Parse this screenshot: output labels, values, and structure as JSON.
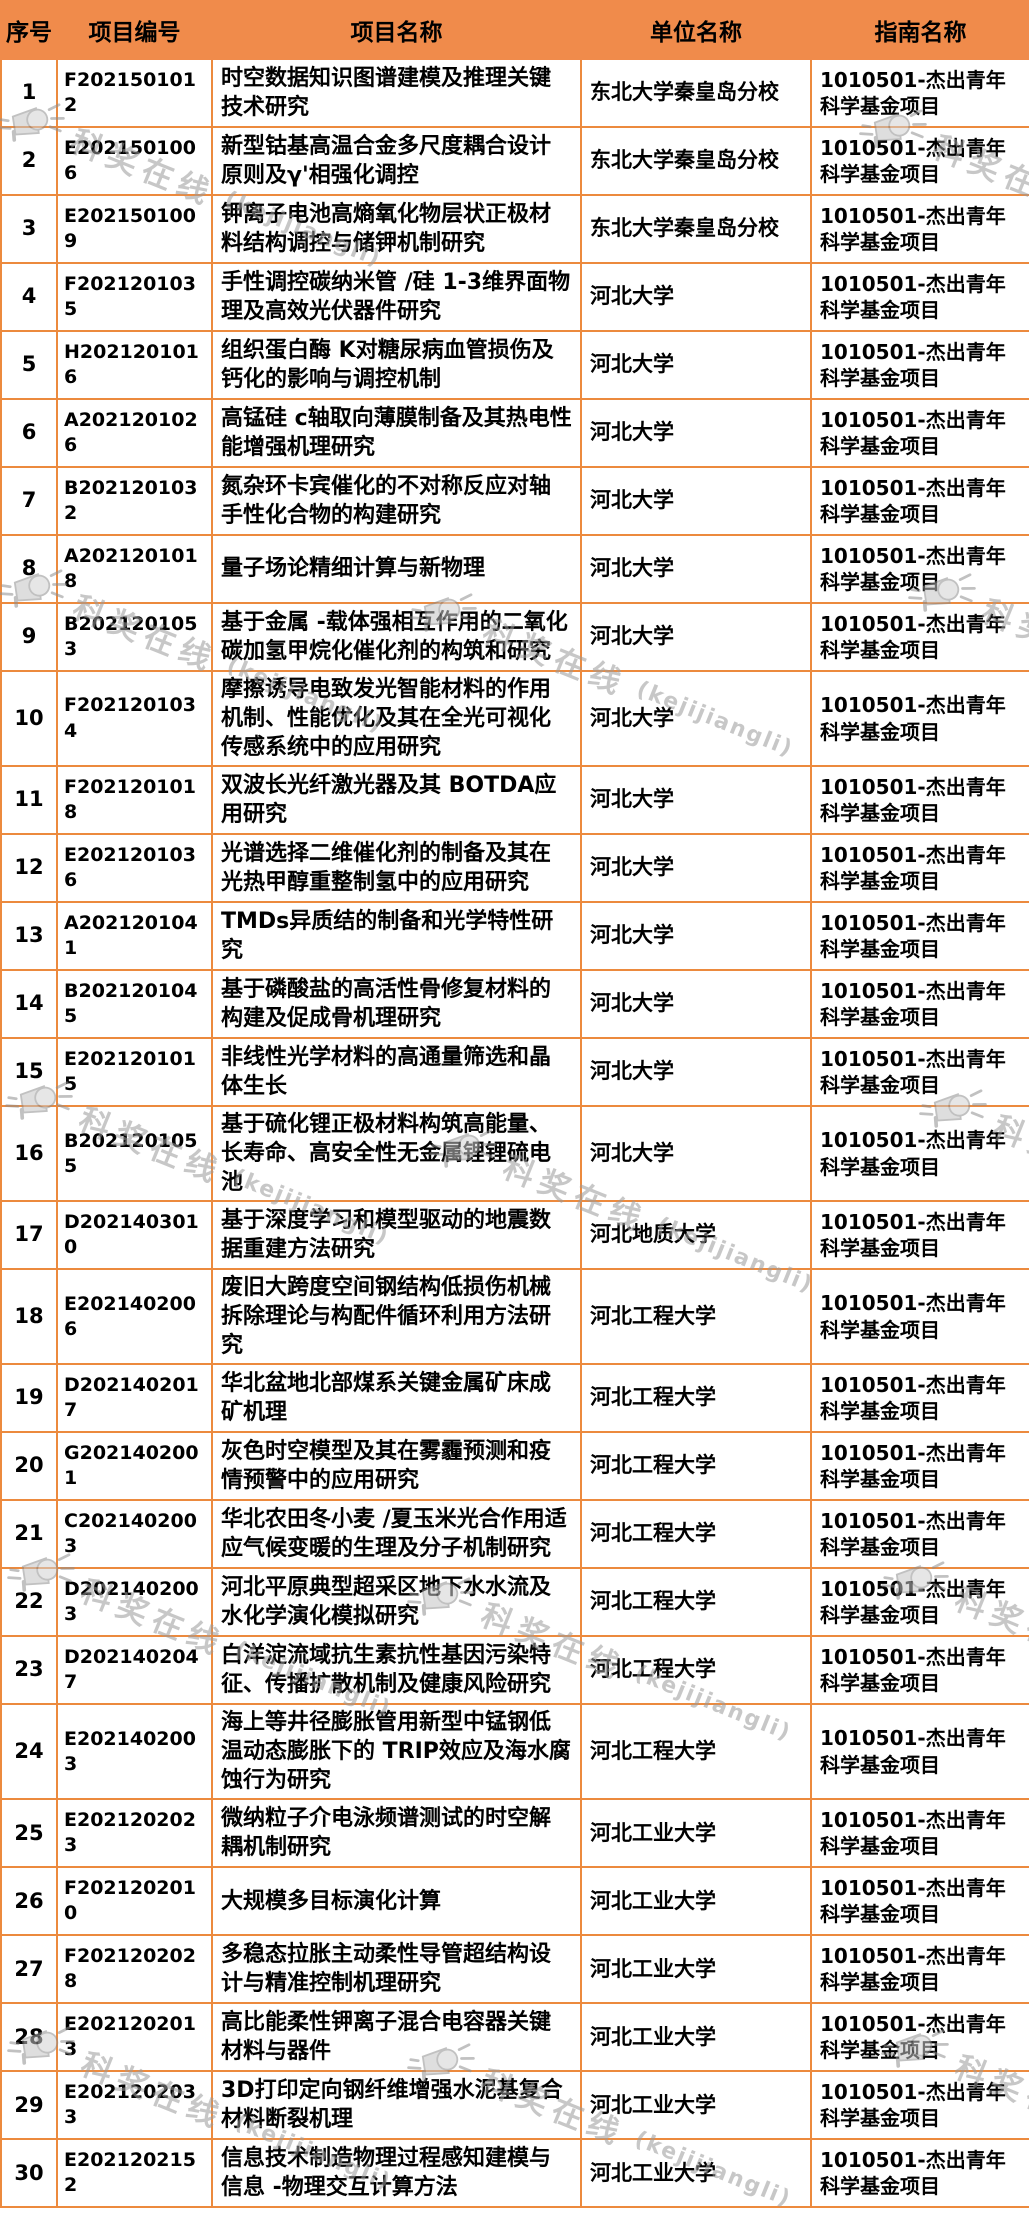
{
  "colors": {
    "header_bg": "#F08B4B",
    "grid_border": "#EC8A3E",
    "cell_bg": "#FFFFFF",
    "text": "#000000",
    "watermark_gray": "#9B9B9B"
  },
  "watermark": {
    "icon": "megaphone-icon",
    "text": "科奖在线",
    "subtext": "(kejijiangli)"
  },
  "table": {
    "columns": [
      {
        "key": "no",
        "label": "序号"
      },
      {
        "key": "code",
        "label": "项目编号"
      },
      {
        "key": "name",
        "label": "项目名称"
      },
      {
        "key": "unit",
        "label": "单位名称"
      },
      {
        "key": "guide",
        "label": "指南名称"
      }
    ],
    "rows": [
      {
        "no": "1",
        "code": "F2021501012",
        "name": "时空数据知识图谱建模及推理关键技术研究",
        "unit": "东北大学秦皇岛分校",
        "guide": "1010501-杰出青年科学基金项目"
      },
      {
        "no": "2",
        "code": "E2021501006",
        "name": "新型钴基高温合金多尺度耦合设计原则及γ'相强化调控",
        "unit": "东北大学秦皇岛分校",
        "guide": "1010501-杰出青年科学基金项目"
      },
      {
        "no": "3",
        "code": "E2021501009",
        "name": "钾离子电池高熵氧化物层状正极材料结构调控与储钾机制研究",
        "unit": "东北大学秦皇岛分校",
        "guide": "1010501-杰出青年科学基金项目"
      },
      {
        "no": "4",
        "code": "F2021201035",
        "name": "手性调控碳纳米管 /硅 1-3维界面物理及高效光伏器件研究",
        "unit": "河北大学",
        "guide": "1010501-杰出青年科学基金项目"
      },
      {
        "no": "5",
        "code": "H2021201016",
        "name": "组织蛋白酶 K对糖尿病血管损伤及钙化的影响与调控机制",
        "unit": "河北大学",
        "guide": "1010501-杰出青年科学基金项目"
      },
      {
        "no": "6",
        "code": "A2021201026",
        "name": "高锰硅 c轴取向薄膜制备及其热电性能增强机理研究",
        "unit": "河北大学",
        "guide": "1010501-杰出青年科学基金项目"
      },
      {
        "no": "7",
        "code": "B2021201032",
        "name": "氮杂环卡宾催化的不对称反应对轴手性化合物的构建研究",
        "unit": "河北大学",
        "guide": "1010501-杰出青年科学基金项目"
      },
      {
        "no": "8",
        "code": "A2021201018",
        "name": "量子场论精细计算与新物理",
        "unit": "河北大学",
        "guide": "1010501-杰出青年科学基金项目"
      },
      {
        "no": "9",
        "code": "B2021201053",
        "name": "基于金属 -载体强相互作用的二氧化碳加氢甲烷化催化剂的构筑和研究",
        "unit": "河北大学",
        "guide": "1010501-杰出青年科学基金项目"
      },
      {
        "no": "10",
        "code": "F2021201034",
        "name": "摩擦诱导电致发光智能材料的作用机制、性能优化及其在全光可视化传感系统中的应用研究",
        "unit": "河北大学",
        "guide": "1010501-杰出青年科学基金项目"
      },
      {
        "no": "11",
        "code": "F2021201018",
        "name": "双波长光纤激光器及其 BOTDA应用研究",
        "unit": "河北大学",
        "guide": "1010501-杰出青年科学基金项目"
      },
      {
        "no": "12",
        "code": "E2021201036",
        "name": "光谱选择二维催化剂的制备及其在光热甲醇重整制氢中的应用研究",
        "unit": "河北大学",
        "guide": "1010501-杰出青年科学基金项目"
      },
      {
        "no": "13",
        "code": "A2021201041",
        "name": "TMDs异质结的制备和光学特性研究",
        "unit": "河北大学",
        "guide": "1010501-杰出青年科学基金项目"
      },
      {
        "no": "14",
        "code": "B2021201045",
        "name": "基于磷酸盐的高活性骨修复材料的构建及促成骨机理研究",
        "unit": "河北大学",
        "guide": "1010501-杰出青年科学基金项目"
      },
      {
        "no": "15",
        "code": "E2021201015",
        "name": "非线性光学材料的高通量筛选和晶体生长",
        "unit": "河北大学",
        "guide": "1010501-杰出青年科学基金项目"
      },
      {
        "no": "16",
        "code": "B2021201055",
        "name": "基于硫化锂正极材料构筑高能量、长寿命、高安全性无金属锂锂硫电池",
        "unit": "河北大学",
        "guide": "1010501-杰出青年科学基金项目"
      },
      {
        "no": "17",
        "code": "D2021403010",
        "name": "基于深度学习和模型驱动的地震数据重建方法研究",
        "unit": "河北地质大学",
        "guide": "1010501-杰出青年科学基金项目"
      },
      {
        "no": "18",
        "code": "E2021402006",
        "name": "废旧大跨度空间钢结构低损伤机械拆除理论与构配件循环利用方法研究",
        "unit": "河北工程大学",
        "guide": "1010501-杰出青年科学基金项目"
      },
      {
        "no": "19",
        "code": "D2021402017",
        "name": "华北盆地北部煤系关键金属矿床成矿机理",
        "unit": "河北工程大学",
        "guide": "1010501-杰出青年科学基金项目"
      },
      {
        "no": "20",
        "code": "G2021402001",
        "name": "灰色时空模型及其在雾霾预测和疫情预警中的应用研究",
        "unit": "河北工程大学",
        "guide": "1010501-杰出青年科学基金项目"
      },
      {
        "no": "21",
        "code": "C2021402003",
        "name": "华北农田冬小麦 /夏玉米光合作用适应气候变暖的生理及分子机制研究",
        "unit": "河北工程大学",
        "guide": "1010501-杰出青年科学基金项目"
      },
      {
        "no": "22",
        "code": "D2021402003",
        "name": "河北平原典型超采区地下水水流及水化学演化模拟研究",
        "unit": "河北工程大学",
        "guide": "1010501-杰出青年科学基金项目"
      },
      {
        "no": "23",
        "code": "D2021402047",
        "name": "白洋淀流域抗生素抗性基因污染特征、传播扩散机制及健康风险研究",
        "unit": "河北工程大学",
        "guide": "1010501-杰出青年科学基金项目"
      },
      {
        "no": "24",
        "code": "E2021402003",
        "name": "海上等井径膨胀管用新型中锰钢低温动态膨胀下的 TRIP效应及海水腐蚀行为研究",
        "unit": "河北工程大学",
        "guide": "1010501-杰出青年科学基金项目"
      },
      {
        "no": "25",
        "code": "E2021202023",
        "name": "微纳粒子介电泳频谱测试的时空解耦机制研究",
        "unit": "河北工业大学",
        "guide": "1010501-杰出青年科学基金项目"
      },
      {
        "no": "26",
        "code": "F2021202010",
        "name": "大规模多目标演化计算",
        "unit": "河北工业大学",
        "guide": "1010501-杰出青年科学基金项目"
      },
      {
        "no": "27",
        "code": "F2021202028",
        "name": "多稳态拉胀主动柔性导管超结构设计与精准控制机理研究",
        "unit": "河北工业大学",
        "guide": "1010501-杰出青年科学基金项目"
      },
      {
        "no": "28",
        "code": "E2021202013",
        "name": "高比能柔性钾离子混合电容器关键材料与器件",
        "unit": "河北工业大学",
        "guide": "1010501-杰出青年科学基金项目"
      },
      {
        "no": "29",
        "code": "E2021202033",
        "name": "3D打印定向钢纤维增强水泥基复合材料断裂机理",
        "unit": "河北工业大学",
        "guide": "1010501-杰出青年科学基金项目"
      },
      {
        "no": "30",
        "code": "E2021202152",
        "name": "信息技术制造物理过程感知建模与信息 -物理交互计算方法",
        "unit": "河北工业大学",
        "guide": "1010501-杰出青年科学基金项目"
      }
    ]
  }
}
